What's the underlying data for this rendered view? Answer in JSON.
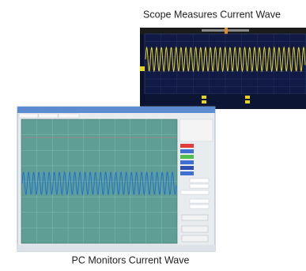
{
  "captions": {
    "top": "Scope Measures Current Wave",
    "bottom": "PC Monitors Current Wave"
  }
}
